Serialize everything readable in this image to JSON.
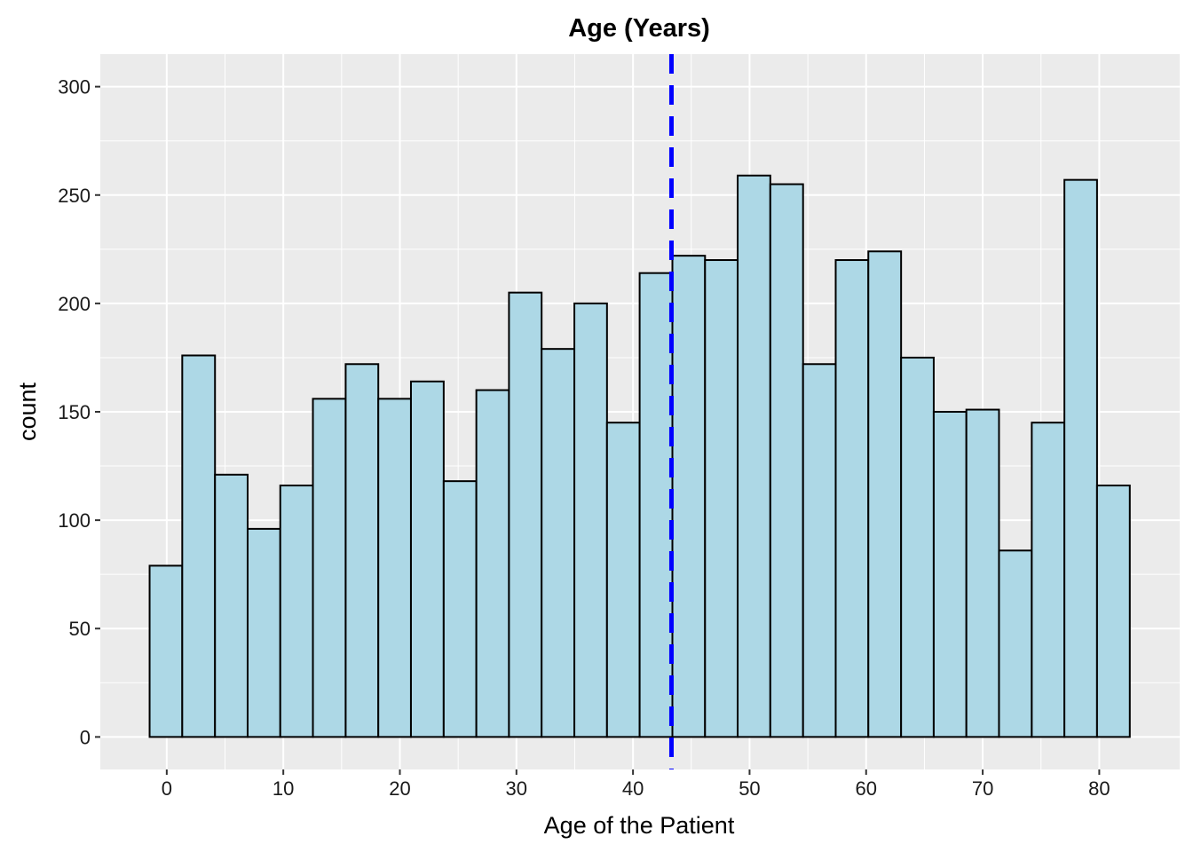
{
  "chart_data": {
    "type": "bar",
    "title": "Age (Years)",
    "xlabel": "Age of the Patient",
    "ylabel": "count",
    "bins": [
      {
        "start": -1.47,
        "end": 1.33,
        "count": 79
      },
      {
        "start": 1.33,
        "end": 4.14,
        "count": 176
      },
      {
        "start": 4.14,
        "end": 6.94,
        "count": 121
      },
      {
        "start": 6.94,
        "end": 9.74,
        "count": 96
      },
      {
        "start": 9.74,
        "end": 12.54,
        "count": 116
      },
      {
        "start": 12.54,
        "end": 15.35,
        "count": 156
      },
      {
        "start": 15.35,
        "end": 18.15,
        "count": 172
      },
      {
        "start": 18.15,
        "end": 20.95,
        "count": 156
      },
      {
        "start": 20.95,
        "end": 23.76,
        "count": 164
      },
      {
        "start": 23.76,
        "end": 26.56,
        "count": 118
      },
      {
        "start": 26.56,
        "end": 29.36,
        "count": 160
      },
      {
        "start": 29.36,
        "end": 32.16,
        "count": 205
      },
      {
        "start": 32.16,
        "end": 34.97,
        "count": 179
      },
      {
        "start": 34.97,
        "end": 37.77,
        "count": 200
      },
      {
        "start": 37.77,
        "end": 40.57,
        "count": 145
      },
      {
        "start": 40.57,
        "end": 43.38,
        "count": 214
      },
      {
        "start": 43.38,
        "end": 46.18,
        "count": 222
      },
      {
        "start": 46.18,
        "end": 48.98,
        "count": 220
      },
      {
        "start": 48.98,
        "end": 51.78,
        "count": 259
      },
      {
        "start": 51.78,
        "end": 54.59,
        "count": 255
      },
      {
        "start": 54.59,
        "end": 57.39,
        "count": 172
      },
      {
        "start": 57.39,
        "end": 60.19,
        "count": 220
      },
      {
        "start": 60.19,
        "end": 63.0,
        "count": 224
      },
      {
        "start": 63.0,
        "end": 65.8,
        "count": 175
      },
      {
        "start": 65.8,
        "end": 68.6,
        "count": 150
      },
      {
        "start": 68.6,
        "end": 71.4,
        "count": 151
      },
      {
        "start": 71.4,
        "end": 74.21,
        "count": 86
      },
      {
        "start": 74.21,
        "end": 77.01,
        "count": 145
      },
      {
        "start": 77.01,
        "end": 79.81,
        "count": 257
      },
      {
        "start": 79.81,
        "end": 82.62,
        "count": 116
      }
    ],
    "mean_line": {
      "x": 43.3,
      "color": "#0000ff",
      "style": "dashed"
    },
    "xlim": [
      -5.7,
      86.9
    ],
    "ylim": [
      -15,
      315
    ],
    "xticks": [
      0,
      10,
      20,
      30,
      40,
      50,
      60,
      70,
      80
    ],
    "yticks": [
      0,
      50,
      100,
      150,
      200,
      250,
      300
    ],
    "grid": true,
    "colors": {
      "panel_background": "#ebebeb",
      "grid": "#ffffff",
      "bar_fill": "#add8e6",
      "bar_outline": "#000000"
    }
  }
}
